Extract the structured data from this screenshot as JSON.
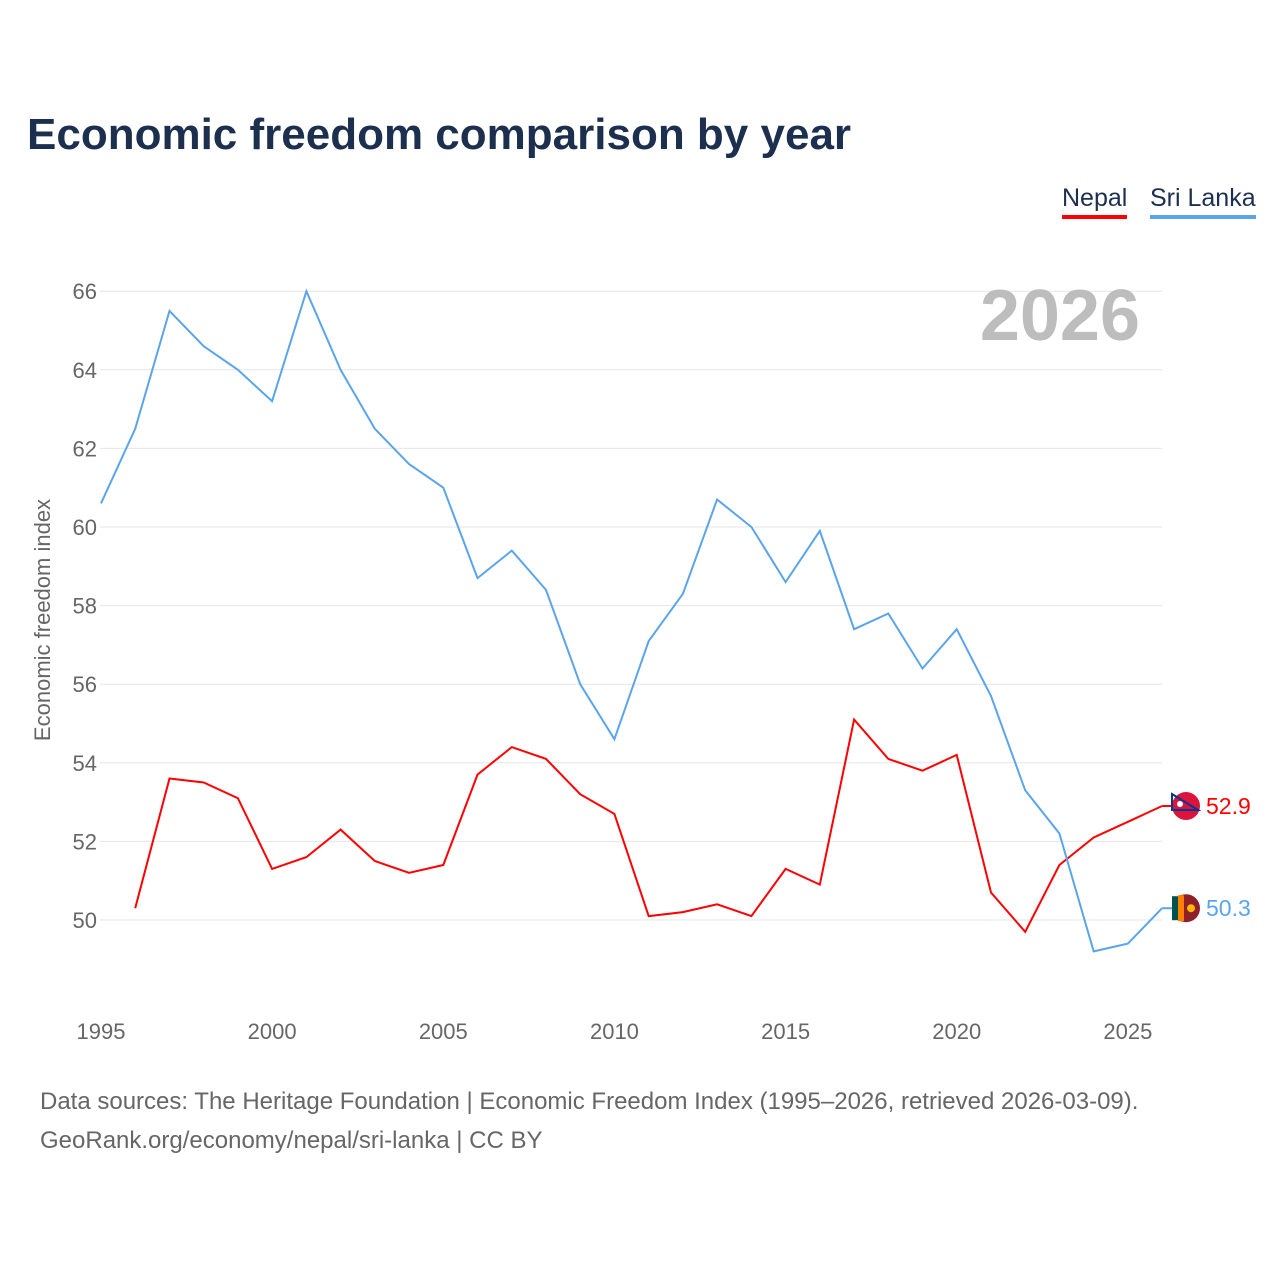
{
  "title": "Economic freedom comparison by year",
  "legend": [
    {
      "label": "Nepal",
      "color": "#ff0000"
    },
    {
      "label": "Sri Lanka",
      "color": "#5aa5ea"
    }
  ],
  "year_watermark": "2026",
  "sources": {
    "line1": "Data sources: The Heritage Foundation | Economic Freedom Index (1995–2026, retrieved 2026-03-09).",
    "line2": "GeoRank.org/economy/nepal/sri-lanka | CC BY"
  },
  "chart_data": {
    "type": "line",
    "title": "Economic freedom comparison by year",
    "xlabel": "",
    "ylabel": "Economic freedom index",
    "xlim": [
      1995,
      2026
    ],
    "ylim": [
      47.8,
      67
    ],
    "xticks": [
      1995,
      2000,
      2005,
      2010,
      2015,
      2020,
      2025
    ],
    "yticks": [
      50,
      52,
      54,
      56,
      58,
      60,
      62,
      64,
      66
    ],
    "grid": true,
    "legend_position": "top-right",
    "series": [
      {
        "name": "Nepal",
        "color": "#ff0000",
        "end_label": "52.9",
        "x": [
          1996,
          1997,
          1998,
          1999,
          2000,
          2001,
          2002,
          2003,
          2004,
          2005,
          2006,
          2007,
          2008,
          2009,
          2010,
          2011,
          2012,
          2013,
          2014,
          2015,
          2016,
          2017,
          2018,
          2019,
          2020,
          2021,
          2022,
          2023,
          2024,
          2025,
          2026
        ],
        "values": [
          50.3,
          53.6,
          53.5,
          53.1,
          51.3,
          51.6,
          52.3,
          51.5,
          51.2,
          51.4,
          53.7,
          54.4,
          54.1,
          53.2,
          52.7,
          50.1,
          50.2,
          50.4,
          50.1,
          51.3,
          50.9,
          55.1,
          54.1,
          53.8,
          54.2,
          50.7,
          49.7,
          51.4,
          52.1,
          52.5,
          52.9
        ]
      },
      {
        "name": "Sri Lanka",
        "color": "#5aa5ea",
        "end_label": "50.3",
        "x": [
          1995,
          1996,
          1997,
          1998,
          1999,
          2000,
          2001,
          2002,
          2003,
          2004,
          2005,
          2006,
          2007,
          2008,
          2009,
          2010,
          2011,
          2012,
          2013,
          2014,
          2015,
          2016,
          2017,
          2018,
          2019,
          2020,
          2021,
          2022,
          2023,
          2024,
          2025,
          2026
        ],
        "values": [
          60.6,
          62.5,
          65.5,
          64.6,
          64.0,
          63.2,
          66.0,
          64.0,
          62.5,
          61.6,
          61.0,
          58.7,
          59.4,
          58.4,
          56.0,
          54.6,
          57.1,
          58.3,
          60.7,
          60.0,
          58.6,
          59.9,
          57.4,
          57.8,
          56.4,
          57.4,
          55.7,
          53.3,
          52.2,
          49.2,
          49.4,
          50.3
        ]
      }
    ]
  }
}
